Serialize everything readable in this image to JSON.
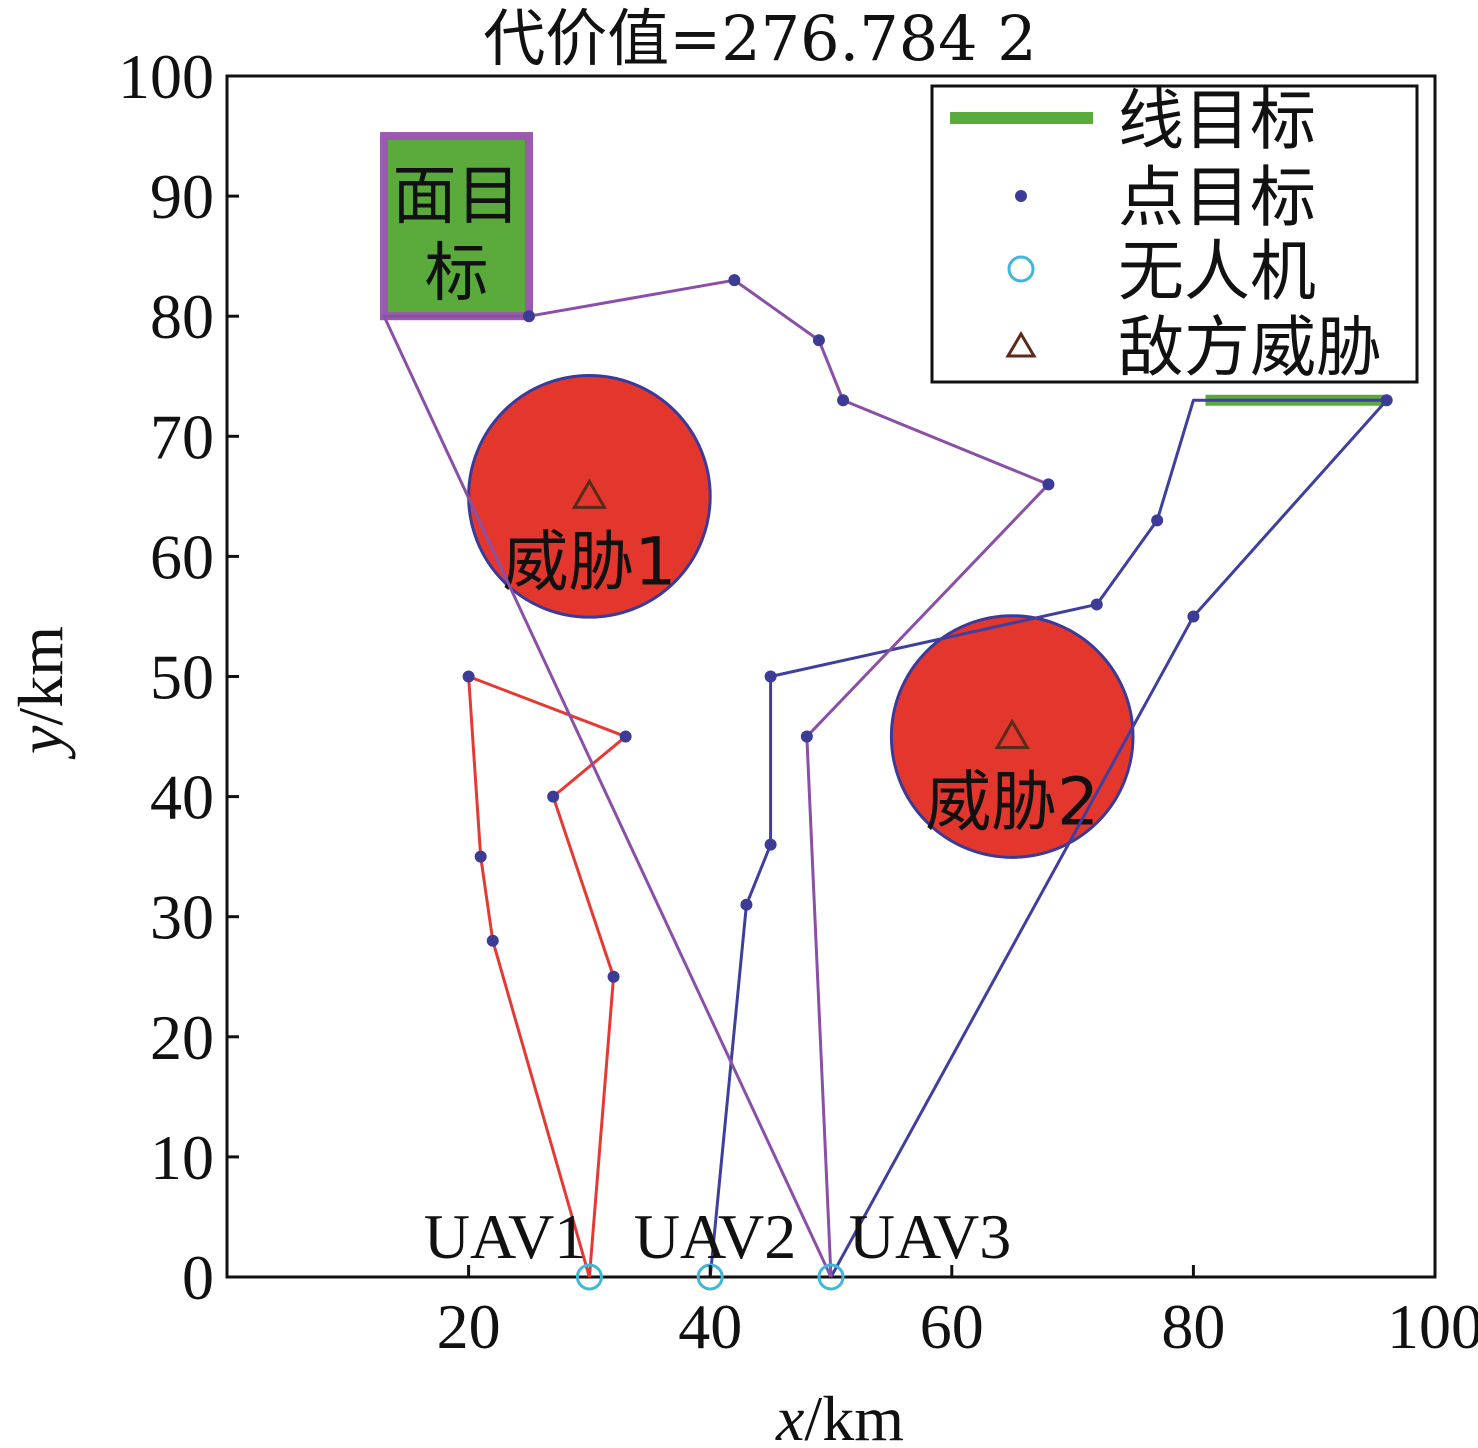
{
  "chart_data": {
    "type": "line",
    "title": "代价值=276.784 2",
    "xlabel_var": "x",
    "xlabel_unit": "/km",
    "ylabel_var": "y",
    "ylabel_unit": "/km",
    "xlim": [
      0,
      100
    ],
    "ylim": [
      0,
      100
    ],
    "xticks": [
      20,
      40,
      60,
      80,
      100
    ],
    "yticks": [
      0,
      10,
      20,
      30,
      40,
      50,
      60,
      70,
      80,
      90,
      100
    ],
    "grid": false,
    "legend_position": "top-right",
    "legend": [
      {
        "label": "线目标",
        "marker": "line"
      },
      {
        "label": "点目标",
        "marker": "dot"
      },
      {
        "label": "无人机",
        "marker": "circle"
      },
      {
        "label": "敌方威胁",
        "marker": "triangle"
      }
    ],
    "colors": {
      "route_uav1": "#e53a34",
      "route_uav2": "#3f3f9e",
      "route_uav3": "#8a4fa6",
      "point_target": "#3c3c96",
      "threat_fill": "#e3372e",
      "threat_edge": "#3a3a9a",
      "line_target": "#5aab3c",
      "area_target_fill": "#5aab3c",
      "area_target_edge": "#9b59b0",
      "uav_marker": "#3fb7d9",
      "threat_marker": "#5a2a1a"
    },
    "area_target": {
      "label_line1": "面目",
      "label_line2": "标",
      "x": [
        13,
        25
      ],
      "y": [
        80,
        95
      ]
    },
    "line_target": {
      "x": [
        81,
        96
      ],
      "y": 73
    },
    "threats": [
      {
        "label": "威胁1",
        "x": 30,
        "y": 65,
        "r": 10
      },
      {
        "label": "威胁2",
        "x": 65,
        "y": 45,
        "r": 10
      }
    ],
    "uavs": [
      {
        "label": "UAV1",
        "x": 30,
        "y": 0
      },
      {
        "label": "UAV2",
        "x": 40,
        "y": 0
      },
      {
        "label": "UAV3",
        "x": 50,
        "y": 0
      }
    ],
    "series": [
      {
        "name": "UAV1",
        "points": [
          [
            30,
            0
          ],
          [
            32,
            25
          ],
          [
            27,
            40
          ],
          [
            33,
            45
          ],
          [
            20,
            50
          ],
          [
            21,
            35
          ],
          [
            22,
            28
          ],
          [
            30,
            0
          ]
        ],
        "targets": [
          [
            32,
            25
          ],
          [
            27,
            40
          ],
          [
            33,
            45
          ],
          [
            20,
            50
          ],
          [
            21,
            35
          ],
          [
            22,
            28
          ]
        ]
      },
      {
        "name": "UAV2",
        "points": [
          [
            40,
            0
          ],
          [
            43,
            31
          ],
          [
            45,
            36
          ],
          [
            45,
            50
          ],
          [
            72,
            56
          ],
          [
            77,
            63
          ],
          [
            80,
            73
          ],
          [
            96,
            73
          ],
          [
            80,
            55
          ],
          [
            50,
            0
          ]
        ],
        "targets": [
          [
            43,
            31
          ],
          [
            45,
            36
          ],
          [
            45,
            50
          ],
          [
            72,
            56
          ],
          [
            77,
            63
          ],
          [
            96,
            73
          ],
          [
            80,
            55
          ]
        ]
      },
      {
        "name": "UAV3",
        "points": [
          [
            50,
            0
          ],
          [
            48,
            45
          ],
          [
            68,
            66
          ],
          [
            51,
            73
          ],
          [
            49,
            78
          ],
          [
            42,
            83
          ],
          [
            25,
            80
          ],
          [
            13,
            80
          ],
          [
            50,
            0
          ]
        ],
        "targets": [
          [
            48,
            45
          ],
          [
            68,
            66
          ],
          [
            51,
            73
          ],
          [
            49,
            78
          ],
          [
            42,
            83
          ],
          [
            25,
            80
          ]
        ]
      }
    ]
  }
}
